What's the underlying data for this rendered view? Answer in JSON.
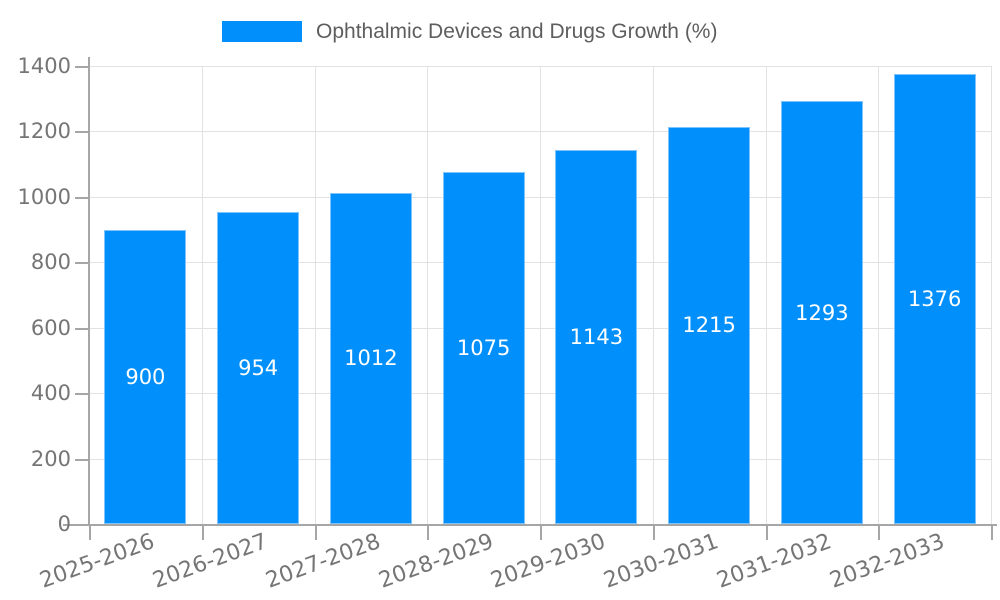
{
  "chart_data": {
    "type": "bar",
    "title": "",
    "legend_position": "top",
    "grid": true,
    "value_labels": "inside-middle",
    "categories": [
      "2025-2026",
      "2026-2027",
      "2027-2028",
      "2028-2029",
      "2029-2030",
      "2030-2031",
      "2031-2032",
      "2032-2033"
    ],
    "series": [
      {
        "name": "Ophthalmic Devices and Drugs Growth (%)",
        "values": [
          900,
          954,
          1012,
          1075,
          1143,
          1215,
          1293,
          1376
        ]
      }
    ],
    "xlabel": "",
    "ylabel": "",
    "ylim": [
      0,
      1400
    ],
    "yticks": [
      0,
      200,
      400,
      600,
      800,
      1000,
      1200,
      1400
    ],
    "colors": {
      "bar_fill": "#018FFB",
      "bar_border": "#7FC3FC",
      "gridline": "#E2E2E2",
      "axis_line": "#A6A6A6",
      "axis_label": "#757575",
      "legend_text": "#5E5E5E",
      "value_label": "#FFFFFF",
      "background": "#FFFFFF"
    }
  }
}
